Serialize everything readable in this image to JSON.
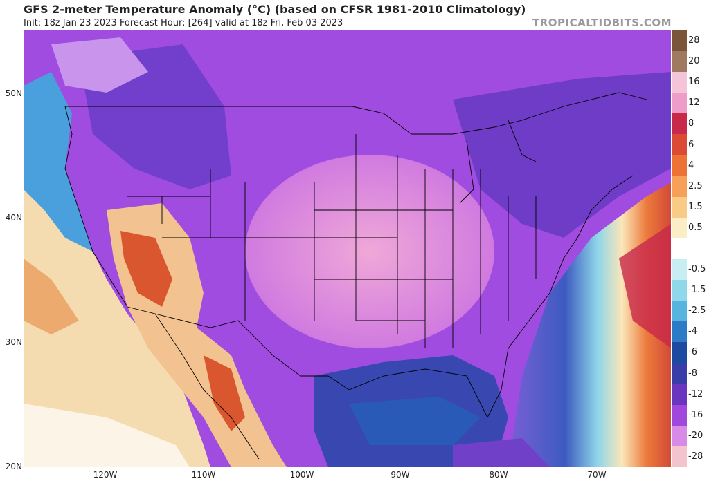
{
  "header": {
    "title": "GFS 2-meter Temperature Anomaly (°C) (based on CFSR 1981-2010 Climatology)",
    "subtitle": "Init: 18z Jan 23 2023   Forecast Hour: [264]   valid at 18z Fri, Feb 03 2023",
    "brand": "TROPICALTIDBITS.COM"
  },
  "axes": {
    "lat_ticks": [
      "50N",
      "40N",
      "30N",
      "20N"
    ],
    "lon_ticks": [
      "120W",
      "110W",
      "100W",
      "90W",
      "80W",
      "70W"
    ]
  },
  "colorbar": {
    "levels": [
      {
        "label": "28",
        "color": "#7a5538"
      },
      {
        "label": "20",
        "color": "#a07a60"
      },
      {
        "label": "16",
        "color": "#f4c5d8"
      },
      {
        "label": "12",
        "color": "#ee9cc8"
      },
      {
        "label": "8",
        "color": "#c8284a"
      },
      {
        "label": "6",
        "color": "#dc4a36"
      },
      {
        "label": "4",
        "color": "#ec7236"
      },
      {
        "label": "2.5",
        "color": "#f6a05a"
      },
      {
        "label": "1.5",
        "color": "#f8cb86"
      },
      {
        "label": "0.5",
        "color": "#fbeec6"
      },
      {
        "label": "",
        "color": "#ffffff"
      },
      {
        "label": "-0.5",
        "color": "#c8eef4"
      },
      {
        "label": "-1.5",
        "color": "#8ed8ea"
      },
      {
        "label": "-2.5",
        "color": "#56b4de"
      },
      {
        "label": "-4",
        "color": "#2d7bc6"
      },
      {
        "label": "-6",
        "color": "#1c4aa0"
      },
      {
        "label": "-8",
        "color": "#3a3ca8"
      },
      {
        "label": "-12",
        "color": "#6a36c0"
      },
      {
        "label": "-16",
        "color": "#a048dc"
      },
      {
        "label": "-20",
        "color": "#d88ae8"
      },
      {
        "label": "-28",
        "color": "#f4c4cc"
      }
    ]
  }
}
